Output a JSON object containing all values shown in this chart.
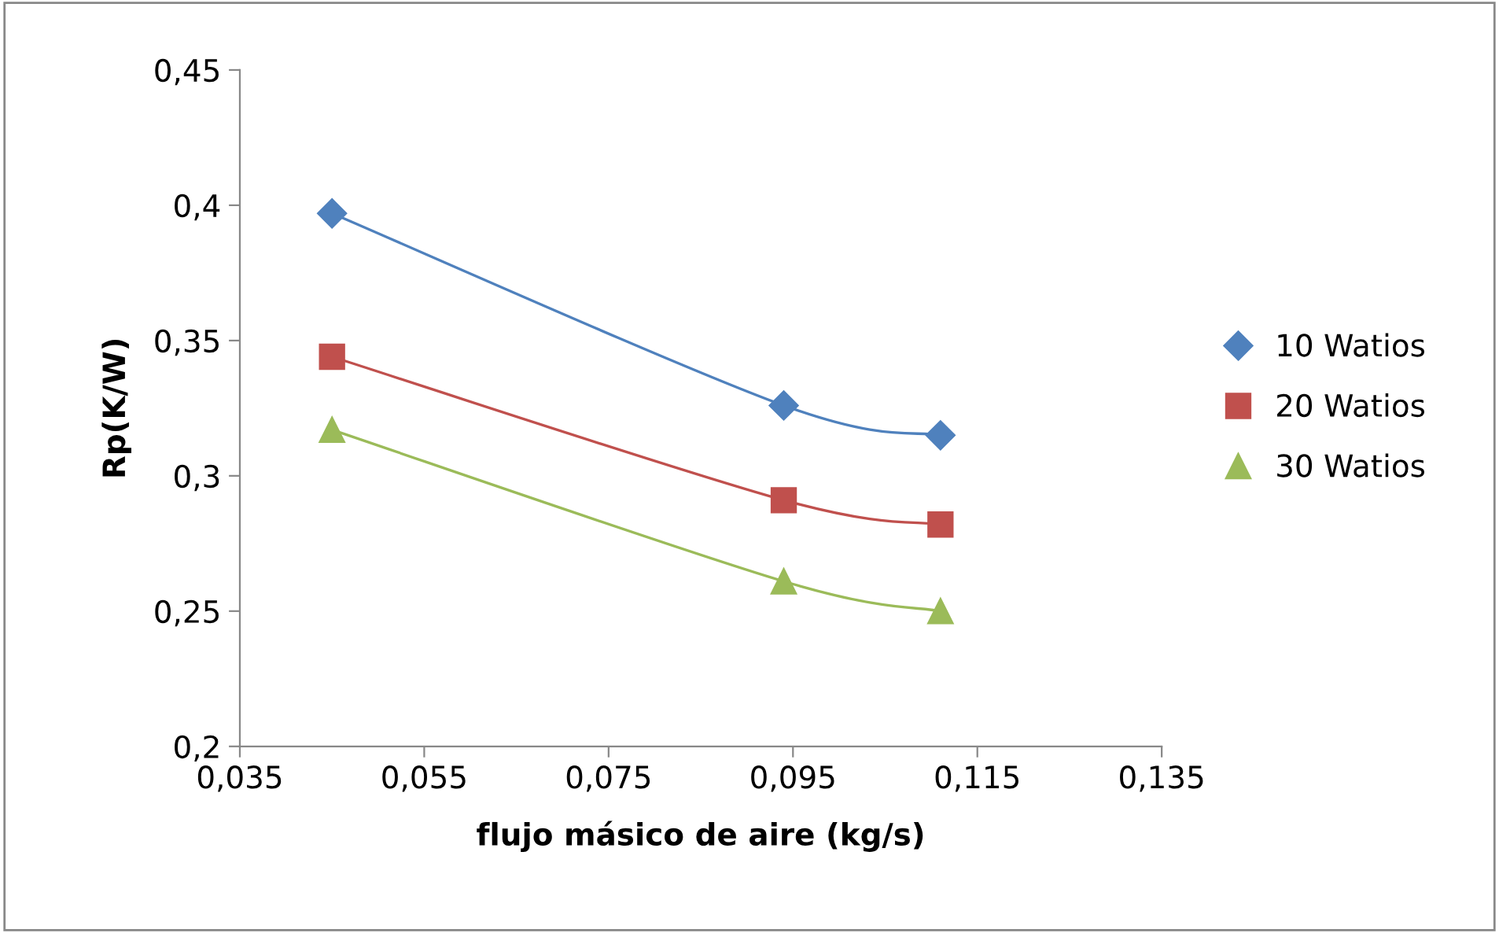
{
  "chart_data": {
    "type": "line",
    "xlabel": "flujo másico de aire (kg/s)",
    "ylabel": "Rp(K/W)",
    "series": [
      {
        "name": "10 Watios",
        "color": "#4f81bd",
        "marker": "diamond",
        "x": [
          0.045,
          0.094,
          0.111
        ],
        "values": [
          0.397,
          0.326,
          0.315
        ]
      },
      {
        "name": "20 Watios",
        "color": "#c0504d",
        "marker": "square",
        "x": [
          0.045,
          0.094,
          0.111
        ],
        "values": [
          0.344,
          0.291,
          0.282
        ]
      },
      {
        "name": "30 Watios",
        "color": "#9bbb59",
        "marker": "triangle",
        "x": [
          0.045,
          0.094,
          0.111
        ],
        "values": [
          0.317,
          0.261,
          0.25
        ]
      }
    ],
    "xlim": [
      0.035,
      0.135
    ],
    "xticks": [
      {
        "value": 0.035,
        "label": "0,035"
      },
      {
        "value": 0.055,
        "label": "0,055"
      },
      {
        "value": 0.075,
        "label": "0,075"
      },
      {
        "value": 0.095,
        "label": "0,095"
      },
      {
        "value": 0.115,
        "label": "0,115"
      },
      {
        "value": 0.135,
        "label": "0,135"
      }
    ],
    "ylim": [
      0.2,
      0.45
    ],
    "yticks": [
      {
        "value": 0.2,
        "label": "0,2"
      },
      {
        "value": 0.25,
        "label": "0,25"
      },
      {
        "value": 0.3,
        "label": "0,3"
      },
      {
        "value": 0.35,
        "label": "0,35"
      },
      {
        "value": 0.4,
        "label": "0,4"
      },
      {
        "value": 0.45,
        "label": "0,45"
      }
    ],
    "grid": false,
    "legend": "right",
    "line_style": "solid"
  }
}
